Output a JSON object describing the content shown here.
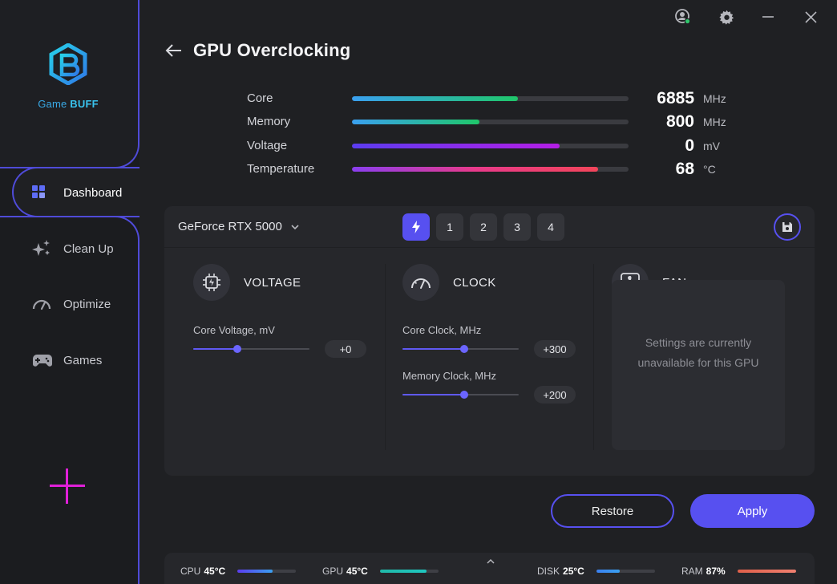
{
  "app": {
    "brand_game": "Game",
    "brand_buff": "BUFF"
  },
  "colors": {
    "accent": "#5750f0",
    "sidebar_border": "#4f4bd8",
    "plus": "#e020d8"
  },
  "sidebar": {
    "items": [
      {
        "label": "Dashboard",
        "icon": "dashboard-grid-icon",
        "active": true
      },
      {
        "label": "Clean Up",
        "icon": "sparkle-icon",
        "active": false
      },
      {
        "label": "Optimize",
        "icon": "speedometer-icon",
        "active": false
      },
      {
        "label": "Games",
        "icon": "gamepad-icon",
        "active": false
      }
    ]
  },
  "header": {
    "title": "GPU Overclocking",
    "icons": [
      "user-status-icon",
      "gear-icon",
      "minimize-icon",
      "close-icon"
    ]
  },
  "stats": [
    {
      "label": "Core",
      "value": "6885",
      "unit": "MHz",
      "fill_pct": 60,
      "gradient": "linear-gradient(90deg,#3aa0f0,#1fc76a)"
    },
    {
      "label": "Memory",
      "value": "800",
      "unit": "MHz",
      "fill_pct": 46,
      "gradient": "linear-gradient(90deg,#3aa0f0,#1fc76a)"
    },
    {
      "label": "Voltage",
      "value": "0",
      "unit": "mV",
      "fill_pct": 75,
      "gradient": "linear-gradient(90deg,#5b3cf0,#b51ee6)"
    },
    {
      "label": "Temperature",
      "value": "68",
      "unit": "°C",
      "fill_pct": 89,
      "gradient": "linear-gradient(90deg,#8a3ef0,#e83a8a,#f2455a)"
    }
  ],
  "card": {
    "gpu_name": "GeForce RTX 5000",
    "profiles": [
      "1",
      "2",
      "3",
      "4"
    ],
    "voltage": {
      "title": "VOLTAGE",
      "core_voltage_label": "Core Voltage, mV",
      "core_voltage_value": "+0",
      "core_voltage_level": 0.38
    },
    "clock": {
      "title": "CLOCK",
      "core_clock_label": "Core Clock, MHz",
      "core_clock_value": "+300",
      "core_clock_level": 0.53,
      "memory_clock_label": "Memory Clock, MHz",
      "memory_clock_value": "+200",
      "memory_clock_level": 0.53
    },
    "fan": {
      "title": "FAN",
      "message": "Settings are currently unavailable for this GPU"
    }
  },
  "actions": {
    "restore": "Restore",
    "apply": "Apply"
  },
  "status_bar": {
    "items": [
      {
        "label": "CPU",
        "value": "45°C",
        "fill_pct": 60,
        "gradient": "linear-gradient(90deg,#5b3cf0,#3aa0f0)"
      },
      {
        "label": "GPU",
        "value": "45°C",
        "fill_pct": 80,
        "gradient": "linear-gradient(90deg,#20b8a8,#1fc7c0)"
      },
      {
        "label": "DISK",
        "value": "25°C",
        "fill_pct": 40,
        "gradient": "linear-gradient(90deg,#3a80f0,#3aa0f0)"
      },
      {
        "label": "RAM",
        "value": "87%",
        "fill_pct": 100,
        "gradient": "linear-gradient(90deg,#e0604a,#f08070)"
      }
    ]
  }
}
